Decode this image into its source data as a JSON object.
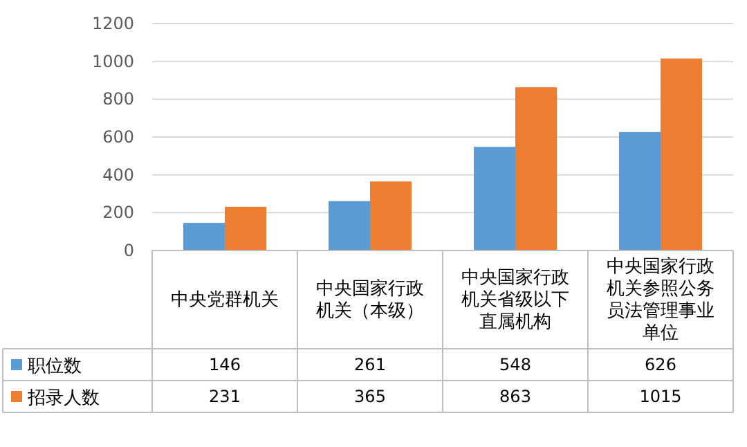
{
  "chart_data": {
    "type": "bar",
    "categories": [
      "中央党群机关",
      "中央国家行政机关（本级）",
      "中央国家行政机关省级以下直属机构",
      "中央国家行政机关参照公务员法管理事业单位"
    ],
    "series": [
      {
        "name": "职位数",
        "color": "#5b9bd5",
        "values": [
          146,
          261,
          548,
          626
        ]
      },
      {
        "name": "招录人数",
        "color": "#ed7d31",
        "values": [
          231,
          365,
          863,
          1015
        ]
      }
    ],
    "ylim": [
      0,
      1200
    ],
    "yticks": [
      0,
      200,
      400,
      600,
      800,
      1000,
      1200
    ],
    "grid": "y",
    "data_labels": true,
    "legend": "bottom"
  }
}
